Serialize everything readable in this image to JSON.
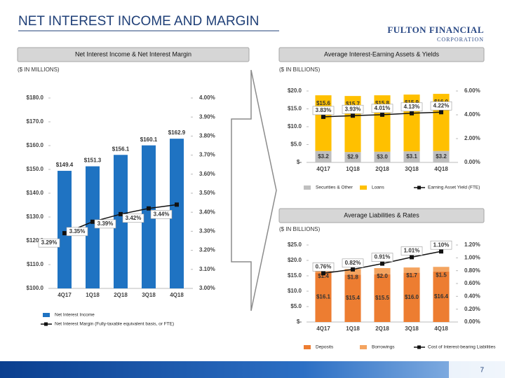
{
  "header": {
    "title": "NET INTEREST INCOME AND MARGIN",
    "logo": [
      "FULTON FINANCIAL",
      "CORPORATION"
    ]
  },
  "page_number": "7",
  "chart_data": [
    {
      "type": "bar",
      "title": "Net Interest Income & Net Interest Margin",
      "subtitle": "($ IN MILLIONS)",
      "categories": [
        "4Q17",
        "1Q18",
        "2Q18",
        "3Q18",
        "4Q18"
      ],
      "stacked": false,
      "legend": "bottom",
      "series": [
        {
          "name": "Net Interest Income",
          "color": "#1f73c2",
          "values": [
            149.4,
            151.3,
            156.1,
            160.1,
            162.9
          ],
          "value_labels": [
            "$149.4",
            "$151.3",
            "$156.1",
            "$160.1",
            "$162.9"
          ]
        },
        {
          "name": "Net Interest Margin (Fully-taxable equivalent basis, or FTE)",
          "color": "#111111",
          "axis": "y2",
          "values": [
            3.29,
            3.35,
            3.39,
            3.42,
            3.44
          ],
          "value_labels": [
            "3.29%",
            "3.35%",
            "3.39%",
            "3.42%",
            "3.44%"
          ]
        }
      ],
      "ylim": [
        100,
        180
      ],
      "yticks": [
        {
          "value": 100,
          "label": "$100.0"
        },
        {
          "value": 110,
          "label": "$110.0"
        },
        {
          "value": 120,
          "label": "$120.0"
        },
        {
          "value": 130,
          "label": "$130.0"
        },
        {
          "value": 140,
          "label": "$140.0"
        },
        {
          "value": 150,
          "label": "$150.0"
        },
        {
          "value": 160,
          "label": "$160.0"
        },
        {
          "value": 170,
          "label": "$170.0"
        },
        {
          "value": 180,
          "label": "$180.0"
        }
      ],
      "y2lim": [
        3.0,
        4.0
      ],
      "y2ticks": [
        {
          "value": 3.0,
          "label": "3.00%"
        },
        {
          "value": 3.1,
          "label": "3.10%"
        },
        {
          "value": 3.2,
          "label": "3.20%"
        },
        {
          "value": 3.3,
          "label": "3.30%"
        },
        {
          "value": 3.4,
          "label": "3.40%"
        },
        {
          "value": 3.5,
          "label": "3.50%"
        },
        {
          "value": 3.6,
          "label": "3.60%"
        },
        {
          "value": 3.7,
          "label": "3.70%"
        },
        {
          "value": 3.8,
          "label": "3.80%"
        },
        {
          "value": 3.9,
          "label": "3.90%"
        },
        {
          "value": 4.0,
          "label": "4.00%"
        }
      ]
    },
    {
      "type": "bar",
      "title": "Average Interest-Earning Assets & Yields",
      "subtitle": "($ IN BILLIONS)",
      "categories": [
        "4Q17",
        "1Q18",
        "2Q18",
        "3Q18",
        "4Q18"
      ],
      "stacked": true,
      "legend": "bottom",
      "series": [
        {
          "name": "Securities & Other",
          "color": "#bfbfbf",
          "values": [
            3.2,
            2.9,
            3.0,
            3.1,
            3.2
          ],
          "value_labels": [
            "$3.2",
            "$2.9",
            "$3.0",
            "$3.1",
            "$3.2"
          ]
        },
        {
          "name": "Loans",
          "color": "#ffc000",
          "values": [
            15.6,
            15.7,
            15.8,
            15.9,
            16.0
          ],
          "value_labels": [
            "$15.6",
            "$15.7",
            "$15.8",
            "$15.9",
            "$16.0"
          ]
        },
        {
          "name": "Earning Asset Yield (FTE)",
          "color": "#111111",
          "axis": "y2",
          "values": [
            3.83,
            3.93,
            4.01,
            4.13,
            4.22
          ],
          "value_labels": [
            "3.83%",
            "3.93%",
            "4.01%",
            "4.13%",
            "4.22%"
          ]
        }
      ],
      "ylim": [
        0,
        20
      ],
      "yticks": [
        {
          "value": 0,
          "label": "$-"
        },
        {
          "value": 5,
          "label": "$5.0"
        },
        {
          "value": 10,
          "label": "$10.0"
        },
        {
          "value": 15,
          "label": "$15.0"
        },
        {
          "value": 20,
          "label": "$20.0"
        }
      ],
      "y2lim": [
        0,
        6
      ],
      "y2ticks": [
        {
          "value": 0,
          "label": "0.00%"
        },
        {
          "value": 2,
          "label": "2.00%"
        },
        {
          "value": 4,
          "label": "4.00%"
        },
        {
          "value": 6,
          "label": "6.00%"
        }
      ]
    },
    {
      "type": "bar",
      "title": "Average Liabilities & Rates",
      "subtitle": "($ IN BILLIONS)",
      "categories": [
        "4Q17",
        "1Q18",
        "2Q18",
        "3Q18",
        "4Q18"
      ],
      "stacked": true,
      "legend": "bottom",
      "series": [
        {
          "name": "Deposits",
          "color": "#ed7d31",
          "values": [
            16.1,
            15.4,
            15.5,
            16.0,
            16.4
          ],
          "value_labels": [
            "$16.1",
            "$15.4",
            "$15.5",
            "$16.0",
            "$16.4"
          ]
        },
        {
          "name": "Borrowings",
          "color": "#f4a460",
          "values": [
            1.4,
            1.8,
            2.0,
            1.7,
            1.5
          ],
          "value_labels": [
            "$1.4",
            "$1.8",
            "$2.0",
            "$1.7",
            "$1.5"
          ]
        },
        {
          "name": "Cost of Interest-bearing Liabilities",
          "color": "#111111",
          "axis": "y2",
          "values": [
            0.76,
            0.82,
            0.91,
            1.01,
            1.1
          ],
          "value_labels": [
            "0.76%",
            "0.82%",
            "0.91%",
            "1.01%",
            "1.10%"
          ]
        }
      ],
      "ylim": [
        0,
        25
      ],
      "yticks": [
        {
          "value": 0,
          "label": "$-"
        },
        {
          "value": 5,
          "label": "$5.0"
        },
        {
          "value": 10,
          "label": "$10.0"
        },
        {
          "value": 15,
          "label": "$15.0"
        },
        {
          "value": 20,
          "label": "$20.0"
        },
        {
          "value": 25,
          "label": "$25.0"
        }
      ],
      "y2lim": [
        0,
        1.2
      ],
      "y2ticks": [
        {
          "value": 0,
          "label": "0.00%"
        },
        {
          "value": 0.2,
          "label": "0.20%"
        },
        {
          "value": 0.4,
          "label": "0.40%"
        },
        {
          "value": 0.6,
          "label": "0.60%"
        },
        {
          "value": 0.8,
          "label": "0.80%"
        },
        {
          "value": 1.0,
          "label": "1.00%"
        },
        {
          "value": 1.2,
          "label": "1.20%"
        }
      ]
    }
  ]
}
